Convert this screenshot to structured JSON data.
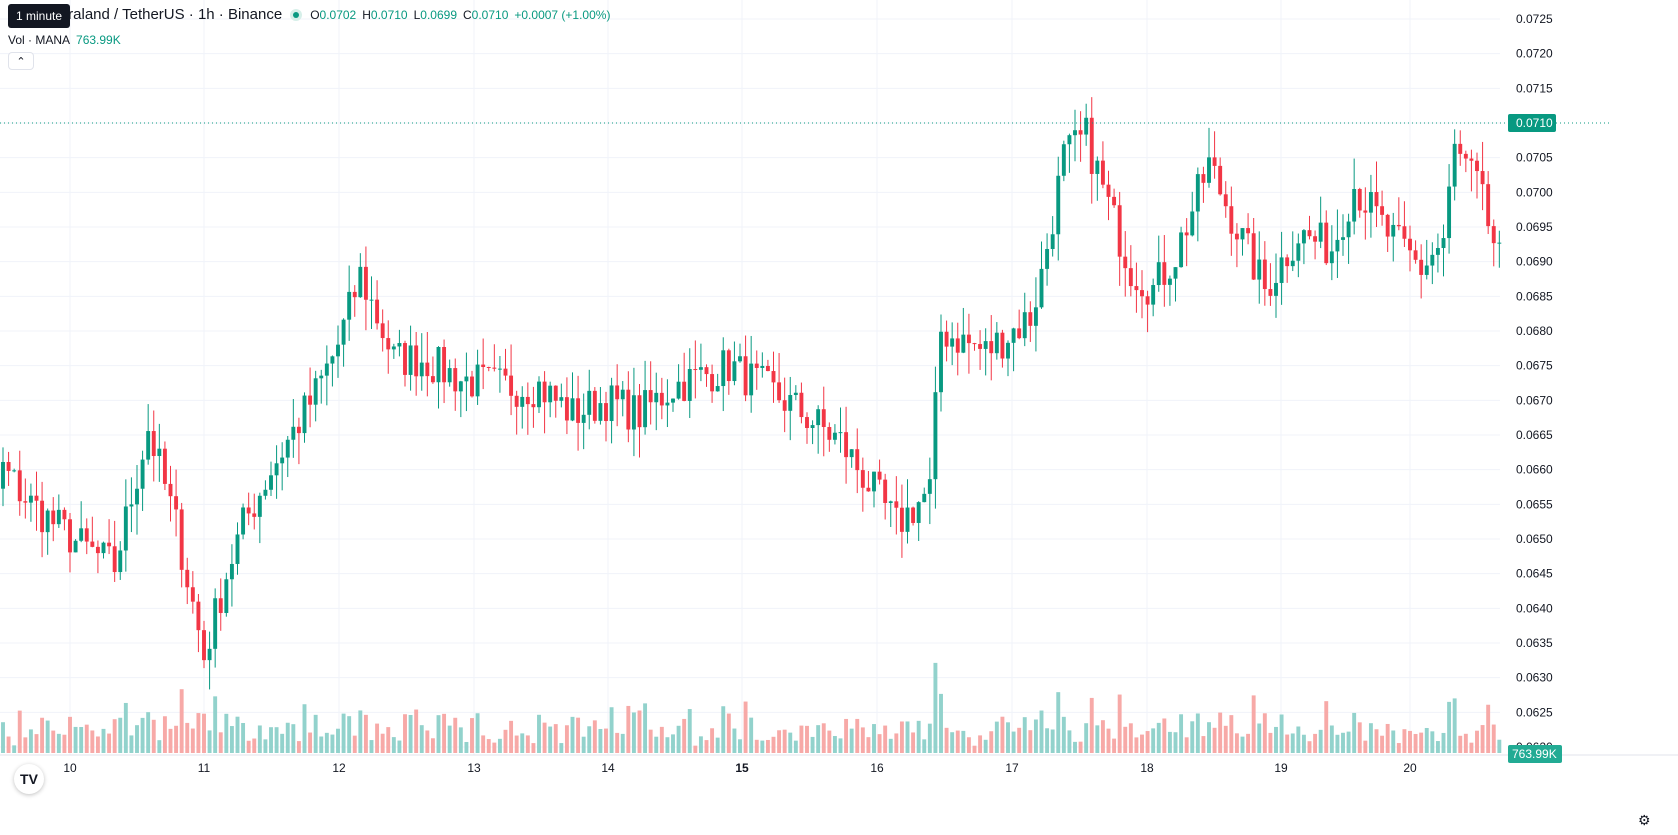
{
  "header": {
    "symbol_title": "traland / TetherUS · 1h · Binance",
    "open_label": "O",
    "open": "0.0702",
    "high_label": "H",
    "high": "0.0710",
    "low_label": "L",
    "low": "0.0699",
    "close_label": "C",
    "close": "0.0710",
    "change": "+0.0007 (+1.00%)",
    "tooltip": "1 minute"
  },
  "volume_legend": {
    "label": "Vol · MANA",
    "value": "763.99K"
  },
  "colors": {
    "up": "#089981",
    "down": "#f23645",
    "up_volume": "#92d2cc",
    "down_volume": "#f7a9a7",
    "grid": "#f0f3fa",
    "text": "#131722"
  },
  "icons": {
    "collapse": "chevron-up-icon",
    "logo": "tradingview-logo",
    "settings": "gear-icon"
  },
  "chart_data": {
    "type": "candlestick",
    "y_ticks": [
      "0.0725",
      "0.0720",
      "0.0715",
      "0.0710",
      "0.0705",
      "0.0700",
      "0.0695",
      "0.0690",
      "0.0685",
      "0.0680",
      "0.0675",
      "0.0670",
      "0.0665",
      "0.0660",
      "0.0655",
      "0.0650",
      "0.0645",
      "0.0640",
      "0.0635",
      "0.0630",
      "0.0625",
      "0.0620"
    ],
    "ylim": [
      0.06195,
      0.07275
    ],
    "x_ticks": [
      "10",
      "11",
      "12",
      "13",
      "14",
      "15",
      "16",
      "17",
      "18",
      "19",
      "20"
    ],
    "last_price": "0.0710",
    "last_volume": "763.99K",
    "waypoints": [
      {
        "t": 0,
        "p": 0.066
      },
      {
        "t": 5,
        "p": 0.0645
      },
      {
        "t": 10,
        "p": 0.066
      },
      {
        "t": 15,
        "p": 0.0655
      },
      {
        "t": 24,
        "p": 0.0649
      },
      {
        "t": 30,
        "p": 0.0646
      },
      {
        "t": 36,
        "p": 0.0666
      },
      {
        "t": 41,
        "p": 0.0652
      },
      {
        "t": 46,
        "p": 0.0633
      },
      {
        "t": 50,
        "p": 0.0645
      },
      {
        "t": 53,
        "p": 0.0652
      },
      {
        "t": 58,
        "p": 0.066
      },
      {
        "t": 66,
        "p": 0.0671
      },
      {
        "t": 70,
        "p": 0.0678
      },
      {
        "t": 74,
        "p": 0.0688
      },
      {
        "t": 80,
        "p": 0.0676
      },
      {
        "t": 85,
        "p": 0.0676
      },
      {
        "t": 92,
        "p": 0.0673
      },
      {
        "t": 100,
        "p": 0.0672
      },
      {
        "t": 106,
        "p": 0.0672
      },
      {
        "t": 112,
        "p": 0.0668
      },
      {
        "t": 118,
        "p": 0.067
      },
      {
        "t": 124,
        "p": 0.0668
      },
      {
        "t": 130,
        "p": 0.0672
      },
      {
        "t": 140,
        "p": 0.0675
      },
      {
        "t": 150,
        "p": 0.067
      },
      {
        "t": 160,
        "p": 0.0664
      },
      {
        "t": 170,
        "p": 0.0652
      },
      {
        "t": 176,
        "p": 0.0657
      },
      {
        "t": 178,
        "p": 0.068
      },
      {
        "t": 186,
        "p": 0.0677
      },
      {
        "t": 194,
        "p": 0.0682
      },
      {
        "t": 196,
        "p": 0.0688
      },
      {
        "t": 200,
        "p": 0.0705
      },
      {
        "t": 204,
        "p": 0.0708
      },
      {
        "t": 208,
        "p": 0.0698
      },
      {
        "t": 212,
        "p": 0.0689
      },
      {
        "t": 216,
        "p": 0.0686
      },
      {
        "t": 220,
        "p": 0.0691
      },
      {
        "t": 226,
        "p": 0.0704
      },
      {
        "t": 232,
        "p": 0.0693
      },
      {
        "t": 236,
        "p": 0.0686
      },
      {
        "t": 242,
        "p": 0.0694
      },
      {
        "t": 248,
        "p": 0.0692
      },
      {
        "t": 252,
        "p": 0.0701
      },
      {
        "t": 258,
        "p": 0.0694
      },
      {
        "t": 264,
        "p": 0.0689
      },
      {
        "t": 268,
        "p": 0.0693
      },
      {
        "t": 270,
        "p": 0.0706
      },
      {
        "t": 274,
        "p": 0.0701
      },
      {
        "t": 278,
        "p": 0.069
      },
      {
        "t": 284,
        "p": 0.0695
      },
      {
        "t": 288,
        "p": 0.068
      },
      {
        "t": 294,
        "p": 0.0685
      },
      {
        "t": 302,
        "p": 0.0675
      },
      {
        "t": 304,
        "p": 0.0658
      },
      {
        "t": 308,
        "p": 0.066
      },
      {
        "t": 314,
        "p": 0.067
      },
      {
        "t": 318,
        "p": 0.0673
      },
      {
        "t": 322,
        "p": 0.066
      },
      {
        "t": 326,
        "p": 0.0659
      },
      {
        "t": 330,
        "p": 0.0661
      },
      {
        "t": 334,
        "p": 0.0666
      },
      {
        "t": 338,
        "p": 0.0671
      },
      {
        "t": 342,
        "p": 0.0666
      },
      {
        "t": 346,
        "p": 0.0665
      },
      {
        "t": 350,
        "p": 0.067
      },
      {
        "t": 354,
        "p": 0.0684
      },
      {
        "t": 358,
        "p": 0.0697
      },
      {
        "t": 362,
        "p": 0.0709
      },
      {
        "t": 364,
        "p": 0.0702
      },
      {
        "t": 365,
        "p": 0.071
      }
    ]
  }
}
